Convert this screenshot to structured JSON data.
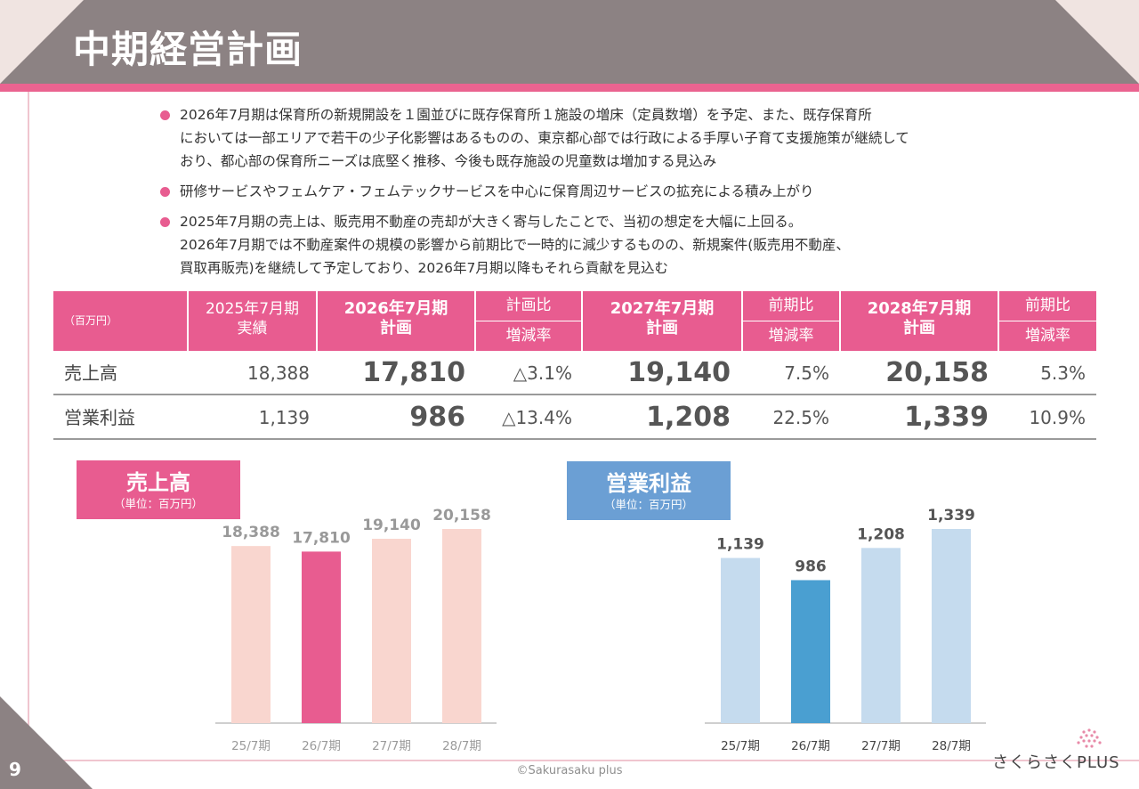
{
  "page": {
    "title": "中期経営計画",
    "page_number": "9",
    "copyright": "©Sakurasaku plus",
    "logo_text": "さくらさくPLUS",
    "colors": {
      "header": "#8c8283",
      "accent_pink": "#e85c90",
      "light_pink": "#f9d6cf",
      "blue_dark": "#4a9fd1",
      "blue_light": "#c5dbee",
      "badge_blue": "#6b9fd4"
    }
  },
  "bullets": [
    {
      "lines": [
        "2026年7月期は保育所の新規開設を１園並びに既存保育所１施設の増床（定員数増）を予定、また、既存保育所",
        "においては一部エリアで若干の少子化影響はあるものの、東京都心部では行政による手厚い子育て支援施策が継続して",
        "おり、都心部の保育所ニーズは底堅く推移、今後も既存施設の児童数は増加する見込み"
      ]
    },
    {
      "lines": [
        "研修サービスやフェムケア・フェムテックサービスを中心に保育周辺サービスの拡充による積み上がり"
      ]
    },
    {
      "lines": [
        "2025年7月期の売上は、販売用不動産の売却が大きく寄与したことで、当初の想定を大幅に上回る。",
        "2026年7月期では不動産案件の規模の影響から前期比で一時的に減少するものの、新規案件(販売用不動産、",
        "買取再販売)を継続して予定しており、2026年7月期以降もそれら貢献を見込む"
      ]
    }
  ],
  "table": {
    "unit": "（百万円）",
    "headers": {
      "c1_line1": "2025年7月期",
      "c1_line2": "実績",
      "c2_line1": "2026年7月期",
      "c2_line2": "計画",
      "c3_top": "計画比",
      "c3_bottom": "増減率",
      "c4_line1": "2027年7月期",
      "c4_line2": "計画",
      "c5_top": "前期比",
      "c5_bottom": "増減率",
      "c6_line1": "2028年7月期",
      "c6_line2": "計画",
      "c7_top": "前期比",
      "c7_bottom": "増減率"
    },
    "rows": [
      {
        "label": "売上高",
        "v2025": "18,388",
        "v2026": "17,810",
        "r2026": "△3.1%",
        "v2027": "19,140",
        "r2027": "7.5%",
        "v2028": "20,158",
        "r2028": "5.3%"
      },
      {
        "label": "営業利益",
        "v2025": "1,139",
        "v2026": "986",
        "r2026": "△13.4%",
        "v2027": "1,208",
        "r2027": "22.5%",
        "v2028": "1,339",
        "r2028": "10.9%"
      }
    ]
  },
  "chart_data": [
    {
      "type": "bar",
      "title": "売上高",
      "subtitle": "（単位：百万円）",
      "categories": [
        "25/7期",
        "26/7期",
        "27/7期",
        "28/7期"
      ],
      "values": [
        18388,
        17810,
        19140,
        20158
      ],
      "labels": [
        "18,388",
        "17,810",
        "19,140",
        "20,158"
      ],
      "highlight_index": 1,
      "colors": {
        "normal": "#f9d6cf",
        "highlight": "#e85c90",
        "badge": "#e85c90",
        "label": "#999999"
      }
    },
    {
      "type": "bar",
      "title": "営業利益",
      "subtitle": "（単位：百万円）",
      "categories": [
        "25/7期",
        "26/7期",
        "27/7期",
        "28/7期"
      ],
      "values": [
        1139,
        986,
        1208,
        1339
      ],
      "labels": [
        "1,139",
        "986",
        "1,208",
        "1,339"
      ],
      "highlight_index": 1,
      "colors": {
        "normal": "#c5dbee",
        "highlight": "#4a9fd1",
        "badge": "#6b9fd4",
        "label": "#555555"
      }
    }
  ]
}
